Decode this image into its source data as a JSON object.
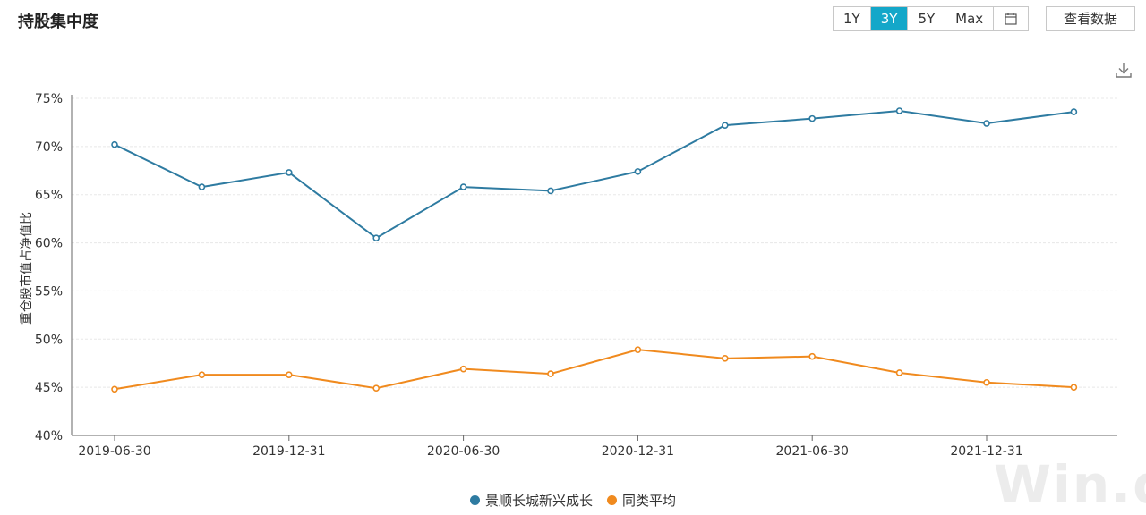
{
  "header": {
    "title": "持股集中度",
    "range_options": [
      "1Y",
      "3Y",
      "5Y",
      "Max"
    ],
    "active_range": "3Y",
    "calendar_icon": "calendar-icon",
    "view_data_label": "查看数据",
    "download_icon": "download-icon"
  },
  "chart_data": {
    "type": "line",
    "ylabel": "重仓股市值占净值比",
    "ylim": [
      40,
      75
    ],
    "yticks": [
      "40%",
      "45%",
      "50%",
      "55%",
      "60%",
      "65%",
      "70%",
      "75%"
    ],
    "x": [
      "2019-06-30",
      "2019-09-30",
      "2019-12-31",
      "2020-03-31",
      "2020-06-30",
      "2020-09-30",
      "2020-12-31",
      "2021-03-31",
      "2021-06-30",
      "2021-09-30",
      "2021-12-31",
      "2022-03-31"
    ],
    "xtick_labels": [
      "2019-06-30",
      "2019-12-31",
      "2020-06-30",
      "2020-12-31",
      "2021-06-30",
      "2021-12-31"
    ],
    "grid": true,
    "legend_position": "bottom",
    "series": [
      {
        "name": "景顺长城新兴成长",
        "color": "#2e7ba1",
        "values": [
          70.2,
          65.8,
          67.3,
          60.5,
          65.8,
          65.4,
          67.4,
          72.2,
          72.9,
          73.7,
          72.4,
          73.6
        ]
      },
      {
        "name": "同类平均",
        "color": "#f08a1e",
        "values": [
          44.8,
          46.3,
          46.3,
          44.9,
          46.9,
          46.4,
          48.9,
          48.0,
          48.2,
          46.5,
          45.5,
          45.0
        ]
      }
    ]
  },
  "watermark": "Win.d"
}
